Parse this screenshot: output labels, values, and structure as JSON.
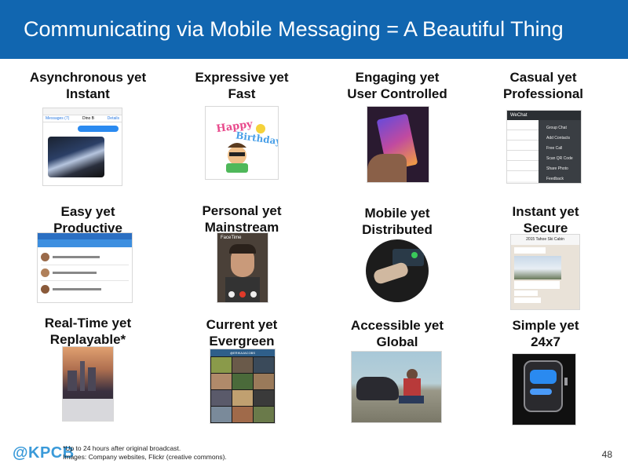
{
  "header": {
    "title": "Communicating via Mobile Messaging = A Beautiful Thing",
    "bg_color": "#1166b0"
  },
  "cells": [
    {
      "line1": "Asynchronous yet",
      "line2": "Instant",
      "image": "imessage-concert-photo"
    },
    {
      "line1": "Expressive yet",
      "line2": "Fast",
      "image": "happy-birthday-bitmoji"
    },
    {
      "line1": "Engaging yet",
      "line2": "User Controlled",
      "image": "hand-holding-phone"
    },
    {
      "line1": "Casual yet",
      "line2": "Professional",
      "image": "wechat-menu"
    },
    {
      "line1": "Easy yet",
      "line2": "Productive",
      "image": "venmo-feed"
    },
    {
      "line1": "Personal yet",
      "line2": "Mainstream",
      "image": "facetime-call"
    },
    {
      "line1": "Mobile yet",
      "line2": "Distributed",
      "image": "car-dashboard"
    },
    {
      "line1": "Instant yet",
      "line2": "Secure",
      "image": "whatsapp-chat"
    },
    {
      "line1": "Real-Time yet",
      "line2": "Replayable*",
      "image": "periscope-city"
    },
    {
      "line1": "Current yet",
      "line2": "Evergreen",
      "image": "instagram-grid"
    },
    {
      "line1": "Accessible yet",
      "line2": "Global",
      "image": "boy-with-motorbike"
    },
    {
      "line1": "Simple yet",
      "line2": "24x7",
      "image": "apple-watch"
    }
  ],
  "thumb_text": {
    "messages_back": "Messages (7)",
    "messages_contact": "Dino B",
    "messages_details": "Details",
    "facetime": "FaceTime",
    "wechat": "WeChat",
    "wechat_menu": [
      "Group Chat",
      "Add Contacts",
      "Free Call",
      "Scan QR Code",
      "Share Photo",
      "Feedback"
    ],
    "whatsapp_title": "2015 Tahoe Ski Cabin",
    "instagram_user": "@ERIKAJACOBS",
    "birthday": "Happy Birthday"
  },
  "footer": {
    "logo": "@KPCB",
    "note1": "*Up to 24 hours after original broadcast.",
    "note2": "Images: Company websites, Flickr (creative commons).",
    "page": "48"
  }
}
